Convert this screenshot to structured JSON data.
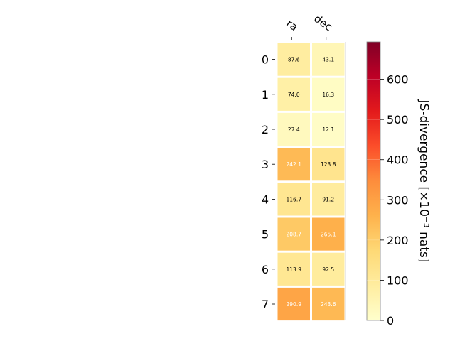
{
  "chart_data": {
    "type": "heatmap",
    "columns": [
      "ra",
      "dec"
    ],
    "rows": [
      "0",
      "1",
      "2",
      "3",
      "4",
      "5",
      "6",
      "7"
    ],
    "values": [
      [
        87.6,
        43.1
      ],
      [
        74.0,
        16.3
      ],
      [
        27.4,
        12.1
      ],
      [
        242.1,
        123.8
      ],
      [
        116.7,
        91.2
      ],
      [
        208.7,
        265.1
      ],
      [
        113.9,
        92.5
      ],
      [
        290.9,
        243.6
      ]
    ],
    "cell_labels": [
      [
        "87.6",
        "43.1"
      ],
      [
        "74.0",
        "16.3"
      ],
      [
        "27.4",
        "12.1"
      ],
      [
        "242.1",
        "123.8"
      ],
      [
        "116.7",
        "91.2"
      ],
      [
        "208.7",
        "265.1"
      ],
      [
        "113.9",
        "92.5"
      ],
      [
        "290.9",
        "243.6"
      ]
    ],
    "colorbar": {
      "label": "JS-divergence [×10⁻³ nats]",
      "range": [
        0,
        693
      ],
      "ticks": [
        0,
        100,
        200,
        300,
        400,
        500,
        600
      ],
      "colormap": "YlOrRd"
    }
  }
}
